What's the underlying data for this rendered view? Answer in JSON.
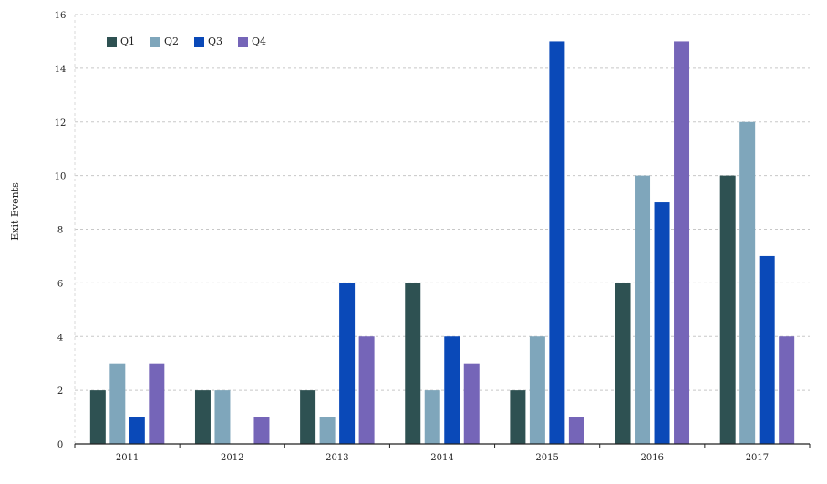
{
  "chart_data": {
    "type": "bar",
    "categories": [
      "2011",
      "2012",
      "2013",
      "2014",
      "2015",
      "2016",
      "2017"
    ],
    "series": [
      {
        "name": "Q1",
        "values": [
          2,
          2,
          2,
          6,
          2,
          6,
          10
        ],
        "color": "#2e5152"
      },
      {
        "name": "Q2",
        "values": [
          3,
          2,
          1,
          2,
          4,
          10,
          12
        ],
        "color": "#7fa6bb"
      },
      {
        "name": "Q3",
        "values": [
          1,
          0,
          6,
          4,
          15,
          9,
          7
        ],
        "color": "#0a49b8"
      },
      {
        "name": "Q4",
        "values": [
          3,
          1,
          4,
          3,
          1,
          15,
          4
        ],
        "color": "#7565b8"
      }
    ],
    "ylabel": "Exit Events",
    "xlabel": "",
    "ylim": [
      0,
      16
    ],
    "yticks": [
      0,
      2,
      4,
      6,
      8,
      10,
      12,
      14,
      16
    ],
    "grid": "horizontal dashed",
    "legend_position": "top-left"
  }
}
